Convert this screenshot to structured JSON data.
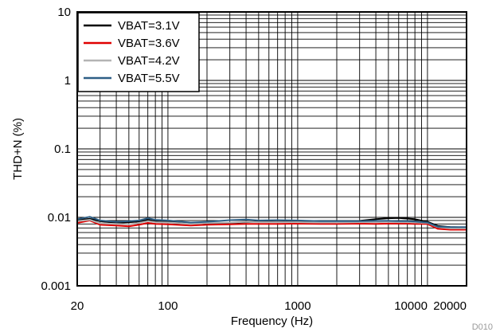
{
  "chart_data": {
    "type": "line",
    "title": "",
    "xlabel": "Frequency (Hz)",
    "ylabel": "THD+N (%)",
    "x_scale": "log",
    "y_scale": "log",
    "xlim": [
      20,
      20000
    ],
    "ylim": [
      0.001,
      10
    ],
    "grid": true,
    "legend_position": "top-left",
    "x_tick_labels": [
      "20",
      "100",
      "1000",
      "10000",
      "20000"
    ],
    "y_tick_labels": [
      "0.001",
      "0.01",
      "0.1",
      "1",
      "10"
    ],
    "figure_id": "D010",
    "x": [
      20,
      25,
      30,
      40,
      50,
      60,
      70,
      80,
      100,
      150,
      200,
      300,
      400,
      500,
      700,
      1000,
      1500,
      2000,
      3000,
      4000,
      5000,
      6000,
      7000,
      8000,
      10000,
      12000,
      15000,
      20000
    ],
    "series": [
      {
        "name": "VBAT=3.1V",
        "color": "#000000",
        "values": [
          0.0092,
          0.0095,
          0.0088,
          0.0083,
          0.0085,
          0.0087,
          0.0092,
          0.0088,
          0.0086,
          0.0081,
          0.0082,
          0.0083,
          0.0085,
          0.0087,
          0.0086,
          0.0087,
          0.0086,
          0.0087,
          0.0089,
          0.0094,
          0.0097,
          0.0098,
          0.0096,
          0.0094,
          0.0086,
          0.0075,
          0.0072,
          0.0071
        ]
      },
      {
        "name": "VBAT=3.6V",
        "color": "#e00000",
        "values": [
          0.0083,
          0.009,
          0.0078,
          0.0076,
          0.0074,
          0.0078,
          0.0083,
          0.008,
          0.0079,
          0.0076,
          0.0078,
          0.0079,
          0.008,
          0.008,
          0.008,
          0.0081,
          0.008,
          0.008,
          0.0081,
          0.008,
          0.0081,
          0.0081,
          0.0081,
          0.008,
          0.008,
          0.0068,
          0.0066,
          0.0066
        ]
      },
      {
        "name": "VBAT=4.2V",
        "color": "#b4b4b4",
        "values": [
          0.0088,
          0.0092,
          0.0082,
          0.008,
          0.0079,
          0.0083,
          0.0088,
          0.0085,
          0.0084,
          0.008,
          0.0083,
          0.0084,
          0.0086,
          0.0085,
          0.0085,
          0.0085,
          0.0084,
          0.0084,
          0.0085,
          0.0085,
          0.0086,
          0.0085,
          0.0085,
          0.0084,
          0.0083,
          0.0072,
          0.0069,
          0.0069
        ]
      },
      {
        "name": "VBAT=5.5V",
        "color": "#2e5f86",
        "values": [
          0.0094,
          0.0102,
          0.009,
          0.0086,
          0.0088,
          0.009,
          0.0097,
          0.0092,
          0.009,
          0.0084,
          0.0086,
          0.0091,
          0.0093,
          0.009,
          0.0091,
          0.009,
          0.0088,
          0.0088,
          0.0088,
          0.0089,
          0.0089,
          0.0088,
          0.0088,
          0.0087,
          0.0084,
          0.0073,
          0.0072,
          0.0072
        ]
      }
    ]
  }
}
